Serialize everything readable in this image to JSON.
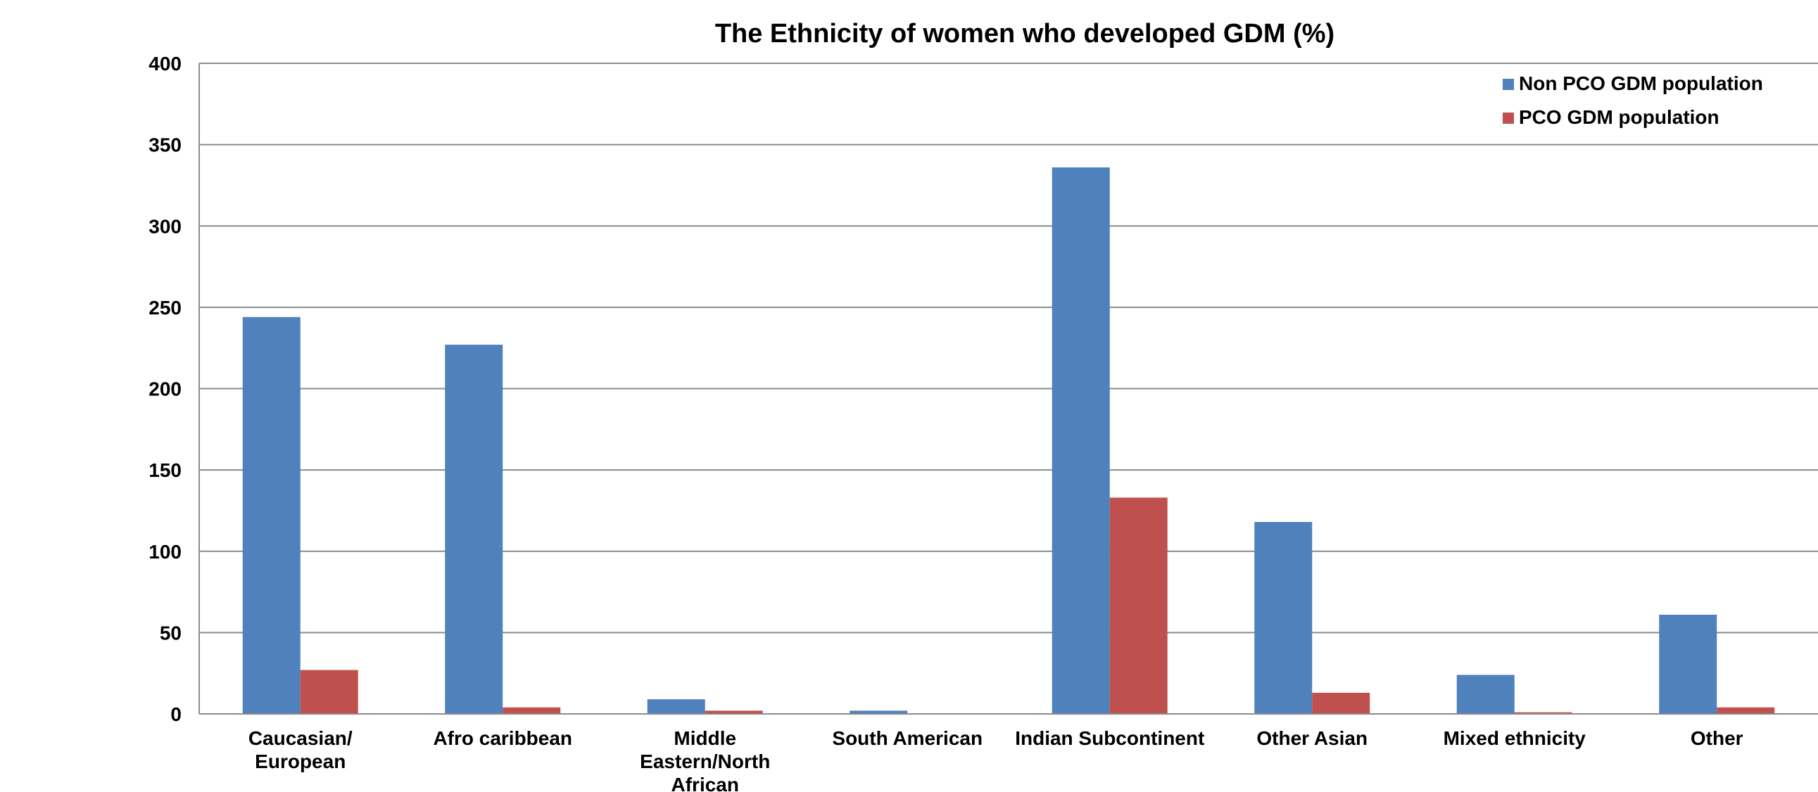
{
  "chart_data": {
    "type": "bar",
    "title": "The Ethnicity of women who developed GDM (%)",
    "xlabel": "",
    "ylabel": "",
    "ylim": [
      0,
      400
    ],
    "yticks": [
      "0",
      "50",
      "100",
      "150",
      "200",
      "250",
      "300",
      "350",
      "400"
    ],
    "grid": true,
    "legend_position": "top-right",
    "categories": [
      [
        "Caucasian/",
        "European"
      ],
      [
        "Afro caribbean"
      ],
      [
        "Middle",
        "Eastern/North",
        "African"
      ],
      [
        "South American"
      ],
      [
        "Indian Subcontinent"
      ],
      [
        "Other Asian"
      ],
      [
        "Mixed ethnicity"
      ],
      [
        "Other"
      ]
    ],
    "series": [
      {
        "name": "Non PCO GDM population",
        "color": "#4F81BD",
        "values": [
          244,
          227,
          9,
          2,
          336,
          118,
          24,
          61
        ]
      },
      {
        "name": "PCO GDM population",
        "color": "#C0504D",
        "values": [
          27,
          4,
          2,
          0,
          133,
          13,
          1,
          4
        ]
      }
    ]
  }
}
